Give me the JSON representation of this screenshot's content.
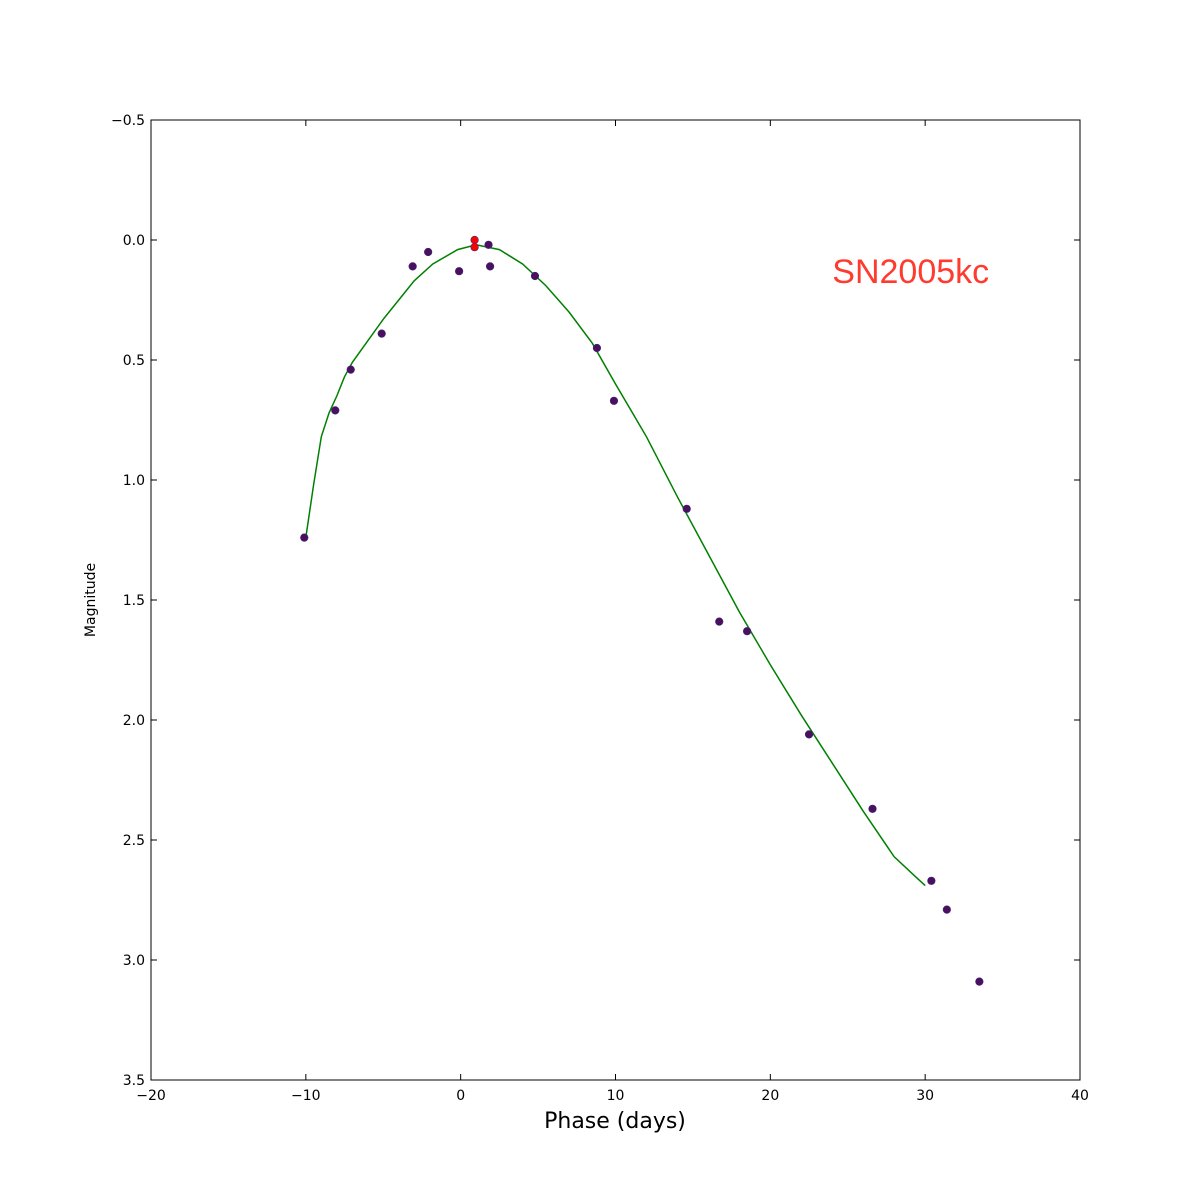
{
  "chart_data": {
    "type": "scatter",
    "title": "",
    "xlabel": "Phase (days)",
    "ylabel": "Magnitude",
    "xlim": [
      -20,
      40
    ],
    "ylim": [
      -0.5,
      3.5
    ],
    "y_inverted": true,
    "grid": false,
    "xticks": [
      -20,
      -10,
      0,
      10,
      20,
      30,
      40
    ],
    "xtick_labels": [
      "−20",
      "−10",
      "0",
      "10",
      "20",
      "30",
      "40"
    ],
    "yticks": [
      -0.5,
      0.0,
      0.5,
      1.0,
      1.5,
      2.0,
      2.5,
      3.0,
      3.5
    ],
    "ytick_labels": [
      "−0.5",
      "0.0",
      "0.5",
      "1.0",
      "1.5",
      "2.0",
      "2.5",
      "3.0",
      "3.5"
    ],
    "annotation": {
      "text": "SN2005kc",
      "color": "#ff3b30",
      "x": 24,
      "y": 0.13
    },
    "series": [
      {
        "kind": "points",
        "color": "#4b0f5e",
        "x": [
          -10.1,
          -8.1,
          -7.1,
          -5.1,
          -3.1,
          -2.1,
          -0.1,
          1.8,
          1.9,
          4.8,
          8.8,
          9.9,
          14.6,
          16.7,
          18.5,
          22.5,
          26.6,
          30.4,
          31.4,
          33.5
        ],
        "y": [
          1.24,
          0.71,
          0.54,
          0.39,
          0.11,
          0.05,
          0.13,
          0.02,
          0.11,
          0.15,
          0.45,
          0.67,
          1.12,
          1.59,
          1.63,
          2.06,
          2.37,
          2.67,
          2.79,
          3.09
        ]
      },
      {
        "kind": "points",
        "color": "#ff0000",
        "x": [
          0.9,
          0.9
        ],
        "y": [
          0.0,
          0.03
        ]
      },
      {
        "kind": "line",
        "color": "#008000",
        "x": [
          -10,
          -9.5,
          -9,
          -8.5,
          -8,
          -7.5,
          -7,
          -6,
          -5,
          -4.5,
          -3,
          -1.8,
          -0.2,
          1.0,
          2.5,
          4.0,
          5.5,
          7.0,
          8.5,
          10.0,
          12,
          14,
          16,
          18,
          20,
          22,
          24,
          26,
          28,
          29.5,
          30
        ],
        "y": [
          1.24,
          1.02,
          0.82,
          0.72,
          0.65,
          0.57,
          0.51,
          0.42,
          0.33,
          0.29,
          0.17,
          0.1,
          0.04,
          0.02,
          0.04,
          0.1,
          0.19,
          0.3,
          0.43,
          0.6,
          0.82,
          1.07,
          1.31,
          1.55,
          1.77,
          1.98,
          2.18,
          2.38,
          2.57,
          2.66,
          2.69
        ]
      }
    ]
  }
}
